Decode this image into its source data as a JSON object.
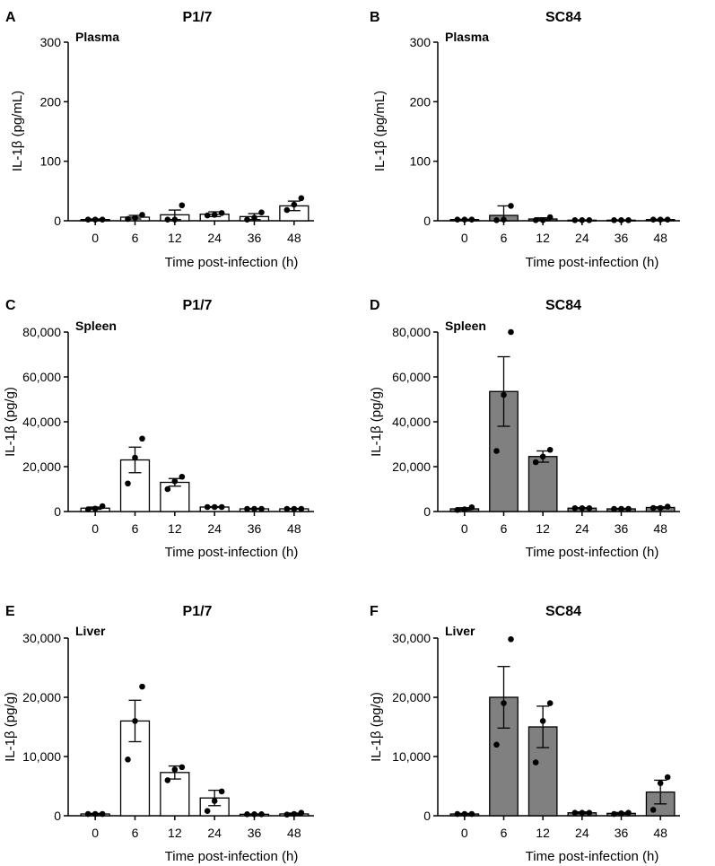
{
  "figure": {
    "x_axis_title": "Time post-infection (h)"
  },
  "chart_data": [
    {
      "panel": "A",
      "type": "bar",
      "title": "P1/7",
      "tissue": "Plasma",
      "ylabel": "IL-1β (pg/mL)",
      "xlabel": "Time post-infection (h)",
      "categories": [
        "0",
        "6",
        "12",
        "24",
        "36",
        "48"
      ],
      "ylim": [
        0,
        300
      ],
      "yticks": [
        0,
        100,
        200,
        300
      ],
      "ytick_labels": [
        "0",
        "100",
        "200",
        "300"
      ],
      "bar_color": "#ffffff",
      "values": [
        2,
        6,
        10,
        11,
        7,
        25
      ],
      "errors": [
        1,
        3,
        8,
        4,
        5,
        8
      ],
      "points": [
        [
          2,
          2,
          2
        ],
        [
          3,
          5,
          10
        ],
        [
          2,
          2,
          26
        ],
        [
          9,
          10,
          13
        ],
        [
          2,
          5,
          14
        ],
        [
          18,
          27,
          38
        ]
      ]
    },
    {
      "panel": "B",
      "type": "bar",
      "title": "SC84",
      "tissue": "Plasma",
      "ylabel": "IL-1β (pg/mL)",
      "xlabel": "Time post-infection (h)",
      "categories": [
        "0",
        "6",
        "12",
        "24",
        "36",
        "48"
      ],
      "ylim": [
        0,
        300
      ],
      "yticks": [
        0,
        100,
        200,
        300
      ],
      "ytick_labels": [
        "0",
        "100",
        "200",
        "300"
      ],
      "bar_color": "#808080",
      "values": [
        2,
        9,
        3,
        1,
        1,
        2
      ],
      "errors": [
        0.5,
        16,
        2,
        0.5,
        0.5,
        0.5
      ],
      "points": [
        [
          2,
          2,
          2
        ],
        [
          1,
          2,
          25
        ],
        [
          1,
          1,
          6
        ],
        [
          1,
          1,
          1
        ],
        [
          1,
          1,
          1
        ],
        [
          2,
          2,
          2
        ]
      ]
    },
    {
      "panel": "C",
      "type": "bar",
      "title": "P1/7",
      "tissue": "Spleen",
      "ylabel": "IL-1β (pg/g)",
      "xlabel": "Time post-infection (h)",
      "categories": [
        "0",
        "6",
        "12",
        "24",
        "36",
        "48"
      ],
      "ylim": [
        0,
        80000
      ],
      "yticks": [
        0,
        20000,
        40000,
        60000,
        80000
      ],
      "ytick_labels": [
        "0",
        "20,000",
        "40,000",
        "60,000",
        "80,000"
      ],
      "bar_color": "#ffffff",
      "values": [
        1500,
        23000,
        13000,
        2000,
        1200,
        1200
      ],
      "errors": [
        500,
        5700,
        1700,
        200,
        200,
        200
      ],
      "points": [
        [
          1000,
          1300,
          2400
        ],
        [
          12500,
          24000,
          32500
        ],
        [
          10000,
          13500,
          15500
        ],
        [
          2000,
          2000,
          2000
        ],
        [
          1200,
          1200,
          1200
        ],
        [
          1200,
          1200,
          1200
        ]
      ]
    },
    {
      "panel": "D",
      "type": "bar",
      "title": "SC84",
      "tissue": "Spleen",
      "ylabel": "IL-1β (pg/g)",
      "xlabel": "Time post-infection (h)",
      "categories": [
        "0",
        "6",
        "12",
        "24",
        "36",
        "48"
      ],
      "ylim": [
        0,
        80000
      ],
      "yticks": [
        0,
        20000,
        40000,
        60000,
        80000
      ],
      "ytick_labels": [
        "0",
        "20,000",
        "40,000",
        "60,000",
        "80,000"
      ],
      "bar_color": "#808080",
      "values": [
        1200,
        53500,
        24500,
        1500,
        1200,
        1800
      ],
      "errors": [
        500,
        15500,
        2500,
        200,
        200,
        300
      ],
      "points": [
        [
          700,
          1000,
          1900
        ],
        [
          27000,
          52000,
          80000
        ],
        [
          22000,
          24500,
          27500
        ],
        [
          1500,
          1500,
          1500
        ],
        [
          1200,
          1200,
          1200
        ],
        [
          1600,
          1600,
          2200
        ]
      ]
    },
    {
      "panel": "E",
      "type": "bar",
      "title": "P1/7",
      "tissue": "Liver",
      "ylabel": "IL-1β (pg/g)",
      "xlabel": "Time post-infection (h)",
      "categories": [
        "0",
        "6",
        "12",
        "24",
        "36",
        "48"
      ],
      "ylim": [
        0,
        30000
      ],
      "yticks": [
        0,
        10000,
        20000,
        30000
      ],
      "ytick_labels": [
        "0",
        "10,000",
        "20,000",
        "30,000"
      ],
      "bar_color": "#ffffff",
      "values": [
        300,
        16000,
        7300,
        3000,
        250,
        300
      ],
      "errors": [
        100,
        3500,
        1100,
        1300,
        50,
        150
      ],
      "points": [
        [
          300,
          300,
          300
        ],
        [
          9500,
          16000,
          21800
        ],
        [
          6000,
          7800,
          8200
        ],
        [
          800,
          2500,
          4100
        ],
        [
          250,
          250,
          250
        ],
        [
          200,
          300,
          500
        ]
      ]
    },
    {
      "panel": "F",
      "type": "bar",
      "title": "SC84",
      "tissue": "Liver",
      "ylabel": "IL-1β (pg/g)",
      "xlabel": "Time post-infection (h)",
      "categories": [
        "0",
        "6",
        "12",
        "24",
        "36",
        "48"
      ],
      "ylim": [
        0,
        30000
      ],
      "yticks": [
        0,
        10000,
        20000,
        30000
      ],
      "ytick_labels": [
        "0",
        "10,000",
        "20,000",
        "30,000"
      ],
      "bar_color": "#808080",
      "values": [
        300,
        20000,
        15000,
        500,
        400,
        4000
      ],
      "errors": [
        100,
        5200,
        3500,
        150,
        150,
        2000
      ],
      "points": [
        [
          300,
          300,
          300
        ],
        [
          12000,
          19000,
          29800
        ],
        [
          9000,
          16000,
          19000
        ],
        [
          500,
          500,
          500
        ],
        [
          300,
          400,
          500
        ],
        [
          1000,
          5500,
          6500
        ]
      ]
    }
  ]
}
